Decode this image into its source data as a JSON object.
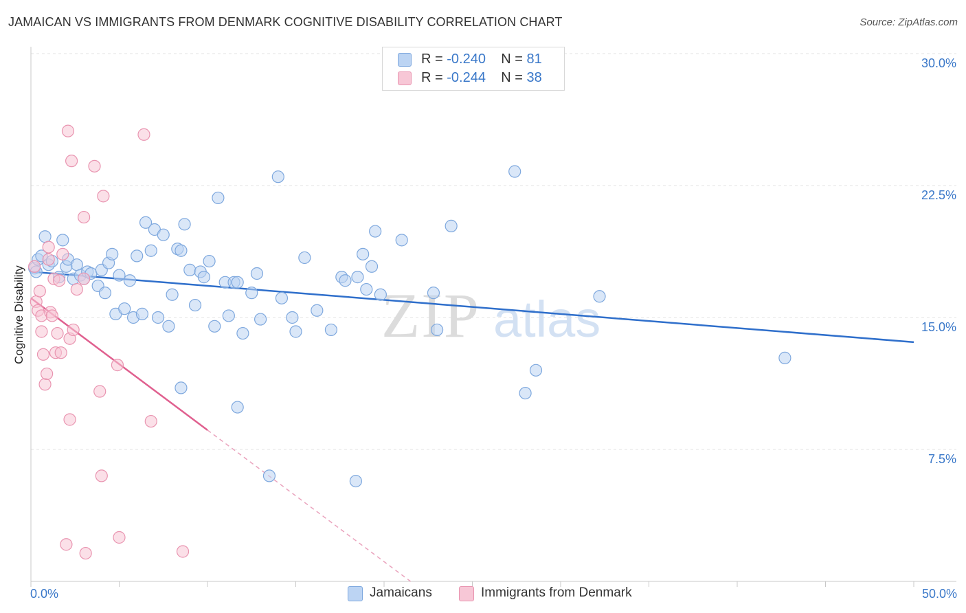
{
  "header": {
    "title": "JAMAICAN VS IMMIGRANTS FROM DENMARK COGNITIVE DISABILITY CORRELATION CHART",
    "source": "Source: ZipAtlas.com"
  },
  "watermark": {
    "zip": "ZIP",
    "atlas": "atlas"
  },
  "legend": {
    "rows": [
      {
        "r_label": "R = ",
        "r_value": "-0.240",
        "n_label": "N = ",
        "n_value": "81"
      },
      {
        "r_label": "R = ",
        "r_value": "-0.244",
        "n_label": "N = ",
        "n_value": "38"
      }
    ]
  },
  "colors": {
    "blue_fill": "#bcd4f3",
    "blue_stroke": "#7ea8de",
    "blue_line": "#2f6fcb",
    "pink_fill": "#f7c7d6",
    "pink_stroke": "#e994b0",
    "pink_line": "#e0608f",
    "axis_text": "#3a78c9",
    "grid": "#e3e3e3"
  },
  "chart_data": {
    "type": "scatter",
    "title": "JAMAICAN VS IMMIGRANTS FROM DENMARK COGNITIVE DISABILITY CORRELATION CHART",
    "xlabel": "",
    "ylabel": "Cognitive Disability",
    "xlim": [
      0,
      50
    ],
    "ylim": [
      0,
      30
    ],
    "x_tick_labels": [
      "0.0%",
      "50.0%"
    ],
    "y_ticks": [
      7.5,
      15.0,
      22.5,
      30.0
    ],
    "y_tick_labels": [
      "7.5%",
      "15.0%",
      "22.5%",
      "30.0%"
    ],
    "grid": true,
    "legend_position": "top-center",
    "series": [
      {
        "name": "Jamaicans",
        "color": "#7ea8de",
        "trend": {
          "x": [
            0.0,
            50.0
          ],
          "y": [
            17.6,
            13.6
          ]
        },
        "points": [
          [
            0.2,
            17.8
          ],
          [
            0.3,
            17.6
          ],
          [
            0.4,
            18.3
          ],
          [
            0.6,
            18.5
          ],
          [
            0.8,
            19.6
          ],
          [
            1.0,
            18.0
          ],
          [
            1.2,
            18.2
          ],
          [
            1.6,
            17.3
          ],
          [
            1.8,
            19.4
          ],
          [
            2.0,
            17.9
          ],
          [
            2.1,
            18.3
          ],
          [
            2.4,
            17.2
          ],
          [
            2.6,
            18.0
          ],
          [
            2.8,
            17.4
          ],
          [
            3.0,
            17.2
          ],
          [
            3.2,
            17.6
          ],
          [
            3.4,
            17.5
          ],
          [
            3.8,
            16.8
          ],
          [
            4.0,
            17.7
          ],
          [
            4.2,
            16.4
          ],
          [
            4.4,
            18.1
          ],
          [
            4.6,
            18.6
          ],
          [
            4.8,
            15.2
          ],
          [
            5.0,
            17.4
          ],
          [
            5.3,
            15.5
          ],
          [
            5.6,
            17.1
          ],
          [
            5.8,
            15.0
          ],
          [
            6.0,
            18.5
          ],
          [
            6.3,
            15.2
          ],
          [
            6.5,
            20.4
          ],
          [
            6.8,
            18.8
          ],
          [
            7.0,
            20.0
          ],
          [
            7.2,
            15.0
          ],
          [
            7.5,
            19.7
          ],
          [
            7.8,
            14.5
          ],
          [
            8.0,
            16.3
          ],
          [
            8.3,
            18.9
          ],
          [
            8.5,
            18.8
          ],
          [
            8.7,
            20.3
          ],
          [
            9.0,
            17.7
          ],
          [
            9.3,
            15.7
          ],
          [
            9.6,
            17.6
          ],
          [
            9.8,
            17.3
          ],
          [
            10.1,
            18.2
          ],
          [
            10.4,
            14.5
          ],
          [
            10.6,
            21.8
          ],
          [
            11.0,
            17.0
          ],
          [
            11.2,
            15.1
          ],
          [
            11.5,
            17.0
          ],
          [
            11.7,
            17.0
          ],
          [
            12.0,
            14.1
          ],
          [
            12.5,
            16.4
          ],
          [
            12.8,
            17.5
          ],
          [
            13.0,
            14.9
          ],
          [
            13.5,
            6.0
          ],
          [
            14.0,
            23.0
          ],
          [
            14.2,
            16.1
          ],
          [
            14.8,
            15.0
          ],
          [
            15.0,
            14.2
          ],
          [
            15.5,
            18.4
          ],
          [
            16.2,
            15.4
          ],
          [
            17.0,
            14.3
          ],
          [
            17.6,
            17.3
          ],
          [
            17.8,
            17.1
          ],
          [
            18.5,
            17.3
          ],
          [
            18.8,
            18.6
          ],
          [
            19.0,
            16.6
          ],
          [
            19.3,
            17.9
          ],
          [
            19.5,
            19.9
          ],
          [
            19.8,
            16.3
          ],
          [
            21.0,
            19.4
          ],
          [
            22.8,
            16.4
          ],
          [
            23.0,
            14.3
          ],
          [
            23.8,
            20.2
          ],
          [
            27.4,
            23.3
          ],
          [
            28.0,
            10.7
          ],
          [
            28.6,
            12.0
          ],
          [
            32.2,
            16.2
          ],
          [
            42.7,
            12.7
          ],
          [
            8.5,
            11.0
          ],
          [
            11.7,
            9.9
          ],
          [
            18.4,
            5.7
          ]
        ]
      },
      {
        "name": "Immigrants from Denmark",
        "color": "#e994b0",
        "trend": {
          "x": [
            0.0,
            10.0
          ],
          "y": [
            16.1,
            8.6
          ]
        },
        "trend_extended": {
          "x": [
            10.0,
            21.5
          ],
          "y": [
            8.6,
            0.0
          ]
        },
        "points": [
          [
            0.2,
            17.9
          ],
          [
            0.3,
            15.9
          ],
          [
            0.4,
            15.4
          ],
          [
            0.5,
            16.5
          ],
          [
            0.6,
            15.1
          ],
          [
            0.6,
            14.2
          ],
          [
            0.7,
            12.9
          ],
          [
            0.8,
            11.2
          ],
          [
            0.9,
            11.8
          ],
          [
            1.0,
            18.3
          ],
          [
            1.1,
            15.3
          ],
          [
            1.2,
            15.1
          ],
          [
            1.3,
            17.2
          ],
          [
            1.4,
            13.0
          ],
          [
            1.5,
            14.1
          ],
          [
            1.6,
            17.1
          ],
          [
            1.7,
            13.0
          ],
          [
            1.8,
            18.6
          ],
          [
            2.0,
            2.1
          ],
          [
            2.1,
            25.6
          ],
          [
            2.2,
            13.8
          ],
          [
            2.2,
            9.2
          ],
          [
            2.3,
            23.9
          ],
          [
            2.4,
            14.3
          ],
          [
            2.6,
            16.6
          ],
          [
            3.0,
            17.2
          ],
          [
            3.1,
            1.6
          ],
          [
            3.6,
            23.6
          ],
          [
            3.9,
            10.8
          ],
          [
            4.0,
            6.0
          ],
          [
            4.1,
            21.9
          ],
          [
            4.9,
            12.3
          ],
          [
            5.0,
            2.5
          ],
          [
            6.4,
            25.4
          ],
          [
            6.8,
            9.1
          ],
          [
            8.6,
            1.7
          ],
          [
            3.0,
            20.7
          ],
          [
            1.0,
            19.0
          ]
        ]
      }
    ]
  },
  "bottom_legend": {
    "items": [
      {
        "label": "Jamaicans"
      },
      {
        "label": "Immigrants from Denmark"
      }
    ]
  }
}
